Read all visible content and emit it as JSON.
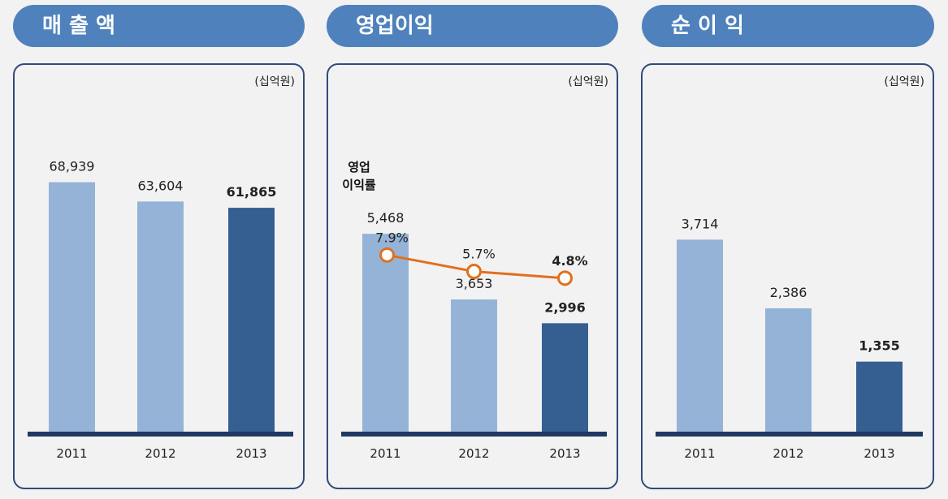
{
  "colors": {
    "pill_bg": "#4f81bd",
    "bar_light": "#95b3d7",
    "bar_dark": "#355f91",
    "baseline": "#1f3864",
    "margin_line": "#e07020"
  },
  "unit_label": "(십억원)",
  "chart_data": [
    {
      "type": "bar",
      "title": "매 출 액",
      "unit": "(십억원)",
      "categories": [
        "2011",
        "2012",
        "2013"
      ],
      "values": [
        68939,
        63604,
        61865
      ],
      "labels": [
        "68,939",
        "63,604",
        "61,865"
      ],
      "highlight_index": 2,
      "ylim": [
        0,
        100000
      ]
    },
    {
      "type": "bar",
      "title": "영업이익",
      "unit": "(십억원)",
      "categories": [
        "2011",
        "2012",
        "2013"
      ],
      "values": [
        5468,
        3653,
        2996
      ],
      "labels": [
        "5,468",
        "3,653",
        "2,996"
      ],
      "highlight_index": 2,
      "ylim": [
        0,
        10000
      ],
      "line_series": {
        "name_lines": [
          "영업",
          "이익률"
        ],
        "values": [
          7.9,
          5.7,
          4.8
        ],
        "labels": [
          "7.9%",
          "5.7%",
          "4.8%"
        ],
        "ylim": [
          0,
          25
        ]
      }
    },
    {
      "type": "bar",
      "title": "순 이 익",
      "unit": "(십억원)",
      "categories": [
        "2011",
        "2012",
        "2013"
      ],
      "values": [
        3714,
        2386,
        1355
      ],
      "labels": [
        "3,714",
        "2,386",
        "1,355"
      ],
      "highlight_index": 2,
      "ylim": [
        0,
        7000
      ]
    }
  ]
}
